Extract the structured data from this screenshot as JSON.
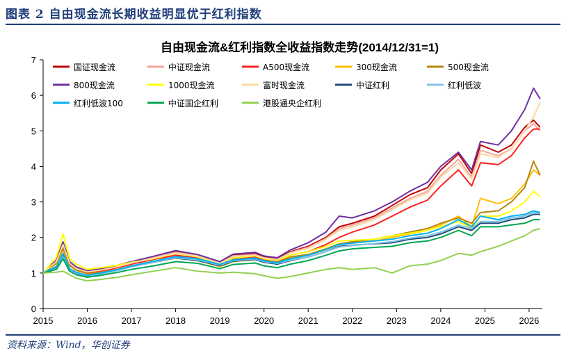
{
  "figure_label": "图表 2  自由现金流长期收益明显优于红利指数",
  "source_note": "资料来源：Wind，华创证券",
  "chart_data": {
    "type": "line",
    "title": "自由现金流&红利指数全收益指数走势(2014/12/31=1)",
    "xlabel": "",
    "ylabel": "",
    "ylim": [
      0,
      7
    ],
    "yticks": [
      0,
      1,
      2,
      3,
      4,
      5,
      6,
      7
    ],
    "xlim": [
      2015.0,
      2026.3
    ],
    "xticks": [
      2015,
      2016,
      2017,
      2018,
      2019,
      2020,
      2021,
      2022,
      2023,
      2024,
      2025,
      2026
    ],
    "grid": false,
    "legend_position": "top-left",
    "series": [
      {
        "name": "国证现金流",
        "color": "#c00000",
        "x": [
          2015.0,
          2015.3,
          2015.45,
          2015.6,
          2015.75,
          2016.0,
          2016.3,
          2016.7,
          2017.0,
          2017.5,
          2018.0,
          2018.5,
          2019.0,
          2019.3,
          2019.8,
          2020.0,
          2020.3,
          2020.6,
          2021.0,
          2021.4,
          2021.7,
          2022.0,
          2022.5,
          2022.9,
          2023.3,
          2023.7,
          2024.0,
          2024.4,
          2024.7,
          2024.9,
          2025.3,
          2025.6,
          2025.9,
          2026.1,
          2026.25
        ],
        "values": [
          1.0,
          1.35,
          1.85,
          1.3,
          1.15,
          1.05,
          1.1,
          1.2,
          1.3,
          1.45,
          1.6,
          1.5,
          1.3,
          1.5,
          1.55,
          1.45,
          1.4,
          1.6,
          1.75,
          2.0,
          2.3,
          2.4,
          2.6,
          2.9,
          3.2,
          3.4,
          3.9,
          4.35,
          3.8,
          4.6,
          4.4,
          4.6,
          5.1,
          5.3,
          5.1
        ]
      },
      {
        "name": "中证现金流",
        "color": "#f4a6a0",
        "x": [
          2015.0,
          2015.3,
          2015.45,
          2015.6,
          2015.75,
          2016.0,
          2016.3,
          2016.7,
          2017.0,
          2017.5,
          2018.0,
          2018.5,
          2019.0,
          2019.3,
          2019.8,
          2020.0,
          2020.3,
          2020.6,
          2021.0,
          2021.4,
          2021.7,
          2022.0,
          2022.5,
          2022.9,
          2023.3,
          2023.7,
          2024.0,
          2024.4,
          2024.7,
          2024.9,
          2025.3,
          2025.6,
          2025.9,
          2026.1,
          2026.25
        ],
        "values": [
          1.0,
          1.33,
          1.82,
          1.28,
          1.13,
          1.04,
          1.09,
          1.19,
          1.29,
          1.44,
          1.58,
          1.49,
          1.28,
          1.48,
          1.52,
          1.43,
          1.38,
          1.58,
          1.72,
          1.97,
          2.25,
          2.35,
          2.55,
          2.83,
          3.1,
          3.3,
          3.75,
          4.2,
          3.7,
          4.45,
          4.3,
          4.5,
          5.0,
          5.2,
          5.0
        ]
      },
      {
        "name": "A500现金流",
        "color": "#ff2020",
        "x": [
          2015.0,
          2015.3,
          2015.45,
          2015.6,
          2015.75,
          2016.0,
          2016.3,
          2016.7,
          2017.0,
          2017.5,
          2018.0,
          2018.5,
          2019.0,
          2019.3,
          2019.8,
          2020.0,
          2020.3,
          2020.6,
          2021.0,
          2021.4,
          2021.7,
          2022.0,
          2022.5,
          2022.9,
          2023.3,
          2023.7,
          2024.0,
          2024.4,
          2024.7,
          2024.9,
          2025.3,
          2025.6,
          2025.9,
          2026.1,
          2026.25
        ],
        "values": [
          1.0,
          1.3,
          1.75,
          1.25,
          1.1,
          1.0,
          1.05,
          1.15,
          1.25,
          1.38,
          1.5,
          1.42,
          1.22,
          1.4,
          1.45,
          1.38,
          1.33,
          1.5,
          1.6,
          1.8,
          2.0,
          2.15,
          2.35,
          2.6,
          2.85,
          3.05,
          3.45,
          3.9,
          3.45,
          4.1,
          4.05,
          4.3,
          4.8,
          5.05,
          5.05
        ]
      },
      {
        "name": "300现金流",
        "color": "#ffc000",
        "x": [
          2015.0,
          2015.3,
          2015.45,
          2015.6,
          2015.75,
          2016.0,
          2016.3,
          2016.7,
          2017.0,
          2017.5,
          2018.0,
          2018.5,
          2019.0,
          2019.3,
          2019.8,
          2020.0,
          2020.3,
          2020.6,
          2021.0,
          2021.4,
          2021.7,
          2022.0,
          2022.5,
          2022.9,
          2023.3,
          2023.7,
          2024.0,
          2024.4,
          2024.7,
          2024.9,
          2025.3,
          2025.6,
          2025.9,
          2026.1,
          2026.25
        ],
        "values": [
          1.0,
          1.25,
          1.65,
          1.2,
          1.08,
          0.98,
          1.02,
          1.1,
          1.18,
          1.3,
          1.42,
          1.35,
          1.18,
          1.32,
          1.38,
          1.32,
          1.28,
          1.42,
          1.5,
          1.65,
          1.8,
          1.85,
          1.9,
          2.0,
          2.1,
          2.2,
          2.35,
          2.6,
          2.3,
          3.1,
          2.95,
          3.1,
          3.5,
          3.9,
          3.75
        ]
      },
      {
        "name": "500现金流",
        "color": "#b8860b",
        "x": [
          2015.0,
          2015.3,
          2015.45,
          2015.6,
          2015.75,
          2016.0,
          2016.3,
          2016.7,
          2017.0,
          2017.5,
          2018.0,
          2018.5,
          2019.0,
          2019.3,
          2019.8,
          2020.0,
          2020.3,
          2020.6,
          2021.0,
          2021.4,
          2021.7,
          2022.0,
          2022.5,
          2022.9,
          2023.3,
          2023.7,
          2024.0,
          2024.4,
          2024.7,
          2024.9,
          2025.3,
          2025.6,
          2025.9,
          2026.1,
          2026.25
        ],
        "values": [
          1.0,
          1.28,
          1.7,
          1.22,
          1.08,
          0.98,
          1.02,
          1.1,
          1.2,
          1.32,
          1.45,
          1.38,
          1.2,
          1.35,
          1.4,
          1.35,
          1.3,
          1.45,
          1.52,
          1.68,
          1.82,
          1.88,
          1.95,
          2.05,
          2.15,
          2.25,
          2.4,
          2.55,
          2.4,
          2.7,
          2.75,
          3.0,
          3.4,
          4.15,
          3.75
        ]
      },
      {
        "name": "800现金流",
        "color": "#7030a0",
        "x": [
          2015.0,
          2015.3,
          2015.45,
          2015.6,
          2015.75,
          2016.0,
          2016.3,
          2016.7,
          2017.0,
          2017.5,
          2018.0,
          2018.5,
          2019.0,
          2019.3,
          2019.8,
          2020.0,
          2020.3,
          2020.6,
          2021.0,
          2021.4,
          2021.7,
          2022.0,
          2022.5,
          2022.9,
          2023.3,
          2023.7,
          2024.0,
          2024.4,
          2024.7,
          2024.9,
          2025.3,
          2025.6,
          2025.9,
          2026.1,
          2026.25
        ],
        "values": [
          1.0,
          1.36,
          1.88,
          1.32,
          1.17,
          1.06,
          1.12,
          1.22,
          1.32,
          1.47,
          1.63,
          1.52,
          1.32,
          1.53,
          1.58,
          1.48,
          1.43,
          1.65,
          1.85,
          2.15,
          2.6,
          2.55,
          2.75,
          3.0,
          3.3,
          3.55,
          4.0,
          4.4,
          3.9,
          4.7,
          4.6,
          5.0,
          5.6,
          6.2,
          5.9
        ]
      },
      {
        "name": "1000现金流",
        "color": "#ffff00",
        "x": [
          2015.0,
          2015.3,
          2015.45,
          2015.6,
          2015.75,
          2016.0,
          2016.3,
          2016.7,
          2017.0,
          2017.5,
          2018.0,
          2018.5,
          2019.0,
          2019.3,
          2019.8,
          2020.0,
          2020.3,
          2020.6,
          2021.0,
          2021.4,
          2021.7,
          2022.0,
          2022.5,
          2022.9,
          2023.3,
          2023.7,
          2024.0,
          2024.4,
          2024.7,
          2024.9,
          2025.3,
          2025.6,
          2025.9,
          2026.1,
          2026.25
        ],
        "values": [
          1.0,
          1.45,
          2.1,
          1.4,
          1.25,
          1.1,
          1.15,
          1.22,
          1.3,
          1.4,
          1.55,
          1.45,
          1.25,
          1.42,
          1.48,
          1.4,
          1.35,
          1.5,
          1.6,
          1.75,
          1.9,
          1.92,
          1.95,
          2.05,
          2.12,
          2.2,
          2.3,
          2.45,
          2.25,
          2.6,
          2.6,
          2.75,
          3.0,
          3.3,
          3.15
        ]
      },
      {
        "name": "富时现金流",
        "color": "#fbd9a0",
        "x": [
          2015.0,
          2015.3,
          2015.45,
          2015.6,
          2015.75,
          2016.0,
          2016.3,
          2016.7,
          2017.0,
          2017.5,
          2018.0,
          2018.5,
          2019.0,
          2019.3,
          2019.8,
          2020.0,
          2020.3,
          2020.6,
          2021.0,
          2021.4,
          2021.7,
          2022.0,
          2022.5,
          2022.9,
          2023.3,
          2023.7,
          2024.0,
          2024.4,
          2024.7,
          2024.9,
          2025.3,
          2025.6,
          2025.9,
          2026.1,
          2026.25
        ],
        "values": [
          1.0,
          1.32,
          1.8,
          1.27,
          1.12,
          1.03,
          1.08,
          1.18,
          1.28,
          1.42,
          1.56,
          1.47,
          1.27,
          1.46,
          1.5,
          1.42,
          1.37,
          1.56,
          1.7,
          1.95,
          2.2,
          2.3,
          2.5,
          2.78,
          3.05,
          3.25,
          3.7,
          4.1,
          3.65,
          4.35,
          4.25,
          4.5,
          5.0,
          5.4,
          5.8
        ]
      },
      {
        "name": "中证红利",
        "color": "#1f4e79",
        "x": [
          2015.0,
          2015.3,
          2015.45,
          2015.6,
          2015.75,
          2016.0,
          2016.3,
          2016.7,
          2017.0,
          2017.5,
          2018.0,
          2018.5,
          2019.0,
          2019.3,
          2019.8,
          2020.0,
          2020.3,
          2020.6,
          2021.0,
          2021.4,
          2021.7,
          2022.0,
          2022.5,
          2022.9,
          2023.3,
          2023.7,
          2024.0,
          2024.4,
          2024.7,
          2024.9,
          2025.3,
          2025.6,
          2025.9,
          2026.1,
          2026.25
        ],
        "values": [
          1.0,
          1.15,
          1.5,
          1.1,
          1.0,
          0.92,
          0.98,
          1.08,
          1.18,
          1.3,
          1.42,
          1.35,
          1.2,
          1.33,
          1.38,
          1.3,
          1.25,
          1.35,
          1.45,
          1.6,
          1.75,
          1.78,
          1.82,
          1.85,
          1.95,
          2.0,
          2.1,
          2.3,
          2.2,
          2.4,
          2.4,
          2.5,
          2.55,
          2.65,
          2.65
        ]
      },
      {
        "name": "红利低波",
        "color": "#7fc4e8",
        "x": [
          2015.0,
          2015.3,
          2015.45,
          2015.6,
          2015.75,
          2016.0,
          2016.3,
          2016.7,
          2017.0,
          2017.5,
          2018.0,
          2018.5,
          2019.0,
          2019.3,
          2019.8,
          2020.0,
          2020.3,
          2020.6,
          2021.0,
          2021.4,
          2021.7,
          2022.0,
          2022.5,
          2022.9,
          2023.3,
          2023.7,
          2024.0,
          2024.4,
          2024.7,
          2024.9,
          2025.3,
          2025.6,
          2025.9,
          2026.1,
          2026.25
        ],
        "values": [
          1.0,
          1.12,
          1.45,
          1.08,
          0.98,
          0.9,
          0.97,
          1.07,
          1.17,
          1.3,
          1.43,
          1.37,
          1.22,
          1.35,
          1.4,
          1.32,
          1.27,
          1.36,
          1.45,
          1.6,
          1.73,
          1.77,
          1.83,
          1.88,
          1.98,
          2.05,
          2.15,
          2.35,
          2.25,
          2.45,
          2.45,
          2.55,
          2.6,
          2.7,
          2.7
        ]
      },
      {
        "name": "红利低波100",
        "color": "#00b0f0",
        "x": [
          2015.0,
          2015.3,
          2015.45,
          2015.6,
          2015.75,
          2016.0,
          2016.3,
          2016.7,
          2017.0,
          2017.5,
          2018.0,
          2018.5,
          2019.0,
          2019.3,
          2019.8,
          2020.0,
          2020.3,
          2020.6,
          2021.0,
          2021.4,
          2021.7,
          2022.0,
          2022.5,
          2022.9,
          2023.3,
          2023.7,
          2024.0,
          2024.4,
          2024.7,
          2024.9,
          2025.3,
          2025.6,
          2025.9,
          2026.1,
          2026.25
        ],
        "values": [
          1.0,
          1.18,
          1.55,
          1.12,
          1.02,
          0.93,
          1.0,
          1.1,
          1.2,
          1.33,
          1.46,
          1.4,
          1.24,
          1.37,
          1.42,
          1.34,
          1.29,
          1.4,
          1.5,
          1.66,
          1.8,
          1.84,
          1.9,
          1.95,
          2.05,
          2.12,
          2.25,
          2.5,
          2.3,
          2.6,
          2.5,
          2.6,
          2.65,
          2.75,
          2.7
        ]
      },
      {
        "name": "中证国企红利",
        "color": "#00a651",
        "x": [
          2015.0,
          2015.3,
          2015.45,
          2015.6,
          2015.75,
          2016.0,
          2016.3,
          2016.7,
          2017.0,
          2017.5,
          2018.0,
          2018.5,
          2019.0,
          2019.3,
          2019.8,
          2020.0,
          2020.3,
          2020.6,
          2021.0,
          2021.4,
          2021.7,
          2022.0,
          2022.5,
          2022.9,
          2023.3,
          2023.7,
          2024.0,
          2024.4,
          2024.7,
          2024.9,
          2025.3,
          2025.6,
          2025.9,
          2026.1,
          2026.25
        ],
        "values": [
          1.0,
          1.1,
          1.4,
          1.05,
          0.95,
          0.88,
          0.93,
          1.02,
          1.1,
          1.2,
          1.32,
          1.27,
          1.12,
          1.24,
          1.28,
          1.2,
          1.15,
          1.25,
          1.35,
          1.5,
          1.62,
          1.68,
          1.72,
          1.75,
          1.85,
          1.9,
          2.0,
          2.2,
          2.05,
          2.3,
          2.3,
          2.35,
          2.4,
          2.5,
          2.5
        ]
      },
      {
        "name": "港股通央企红利",
        "color": "#92d050",
        "x": [
          2015.0,
          2015.3,
          2015.45,
          2015.6,
          2015.75,
          2016.0,
          2016.3,
          2016.7,
          2017.0,
          2017.5,
          2018.0,
          2018.5,
          2019.0,
          2019.3,
          2019.8,
          2020.0,
          2020.3,
          2020.6,
          2021.0,
          2021.4,
          2021.7,
          2022.0,
          2022.5,
          2022.9,
          2023.3,
          2023.7,
          2024.0,
          2024.4,
          2024.7,
          2024.9,
          2025.3,
          2025.6,
          2025.9,
          2026.1,
          2026.25
        ],
        "values": [
          1.0,
          1.02,
          1.05,
          0.95,
          0.85,
          0.78,
          0.82,
          0.88,
          0.95,
          1.05,
          1.15,
          1.05,
          1.0,
          1.02,
          0.98,
          0.92,
          0.85,
          0.9,
          1.0,
          1.1,
          1.15,
          1.1,
          1.15,
          1.0,
          1.2,
          1.25,
          1.35,
          1.55,
          1.5,
          1.6,
          1.75,
          1.9,
          2.05,
          2.2,
          2.25
        ]
      }
    ]
  }
}
